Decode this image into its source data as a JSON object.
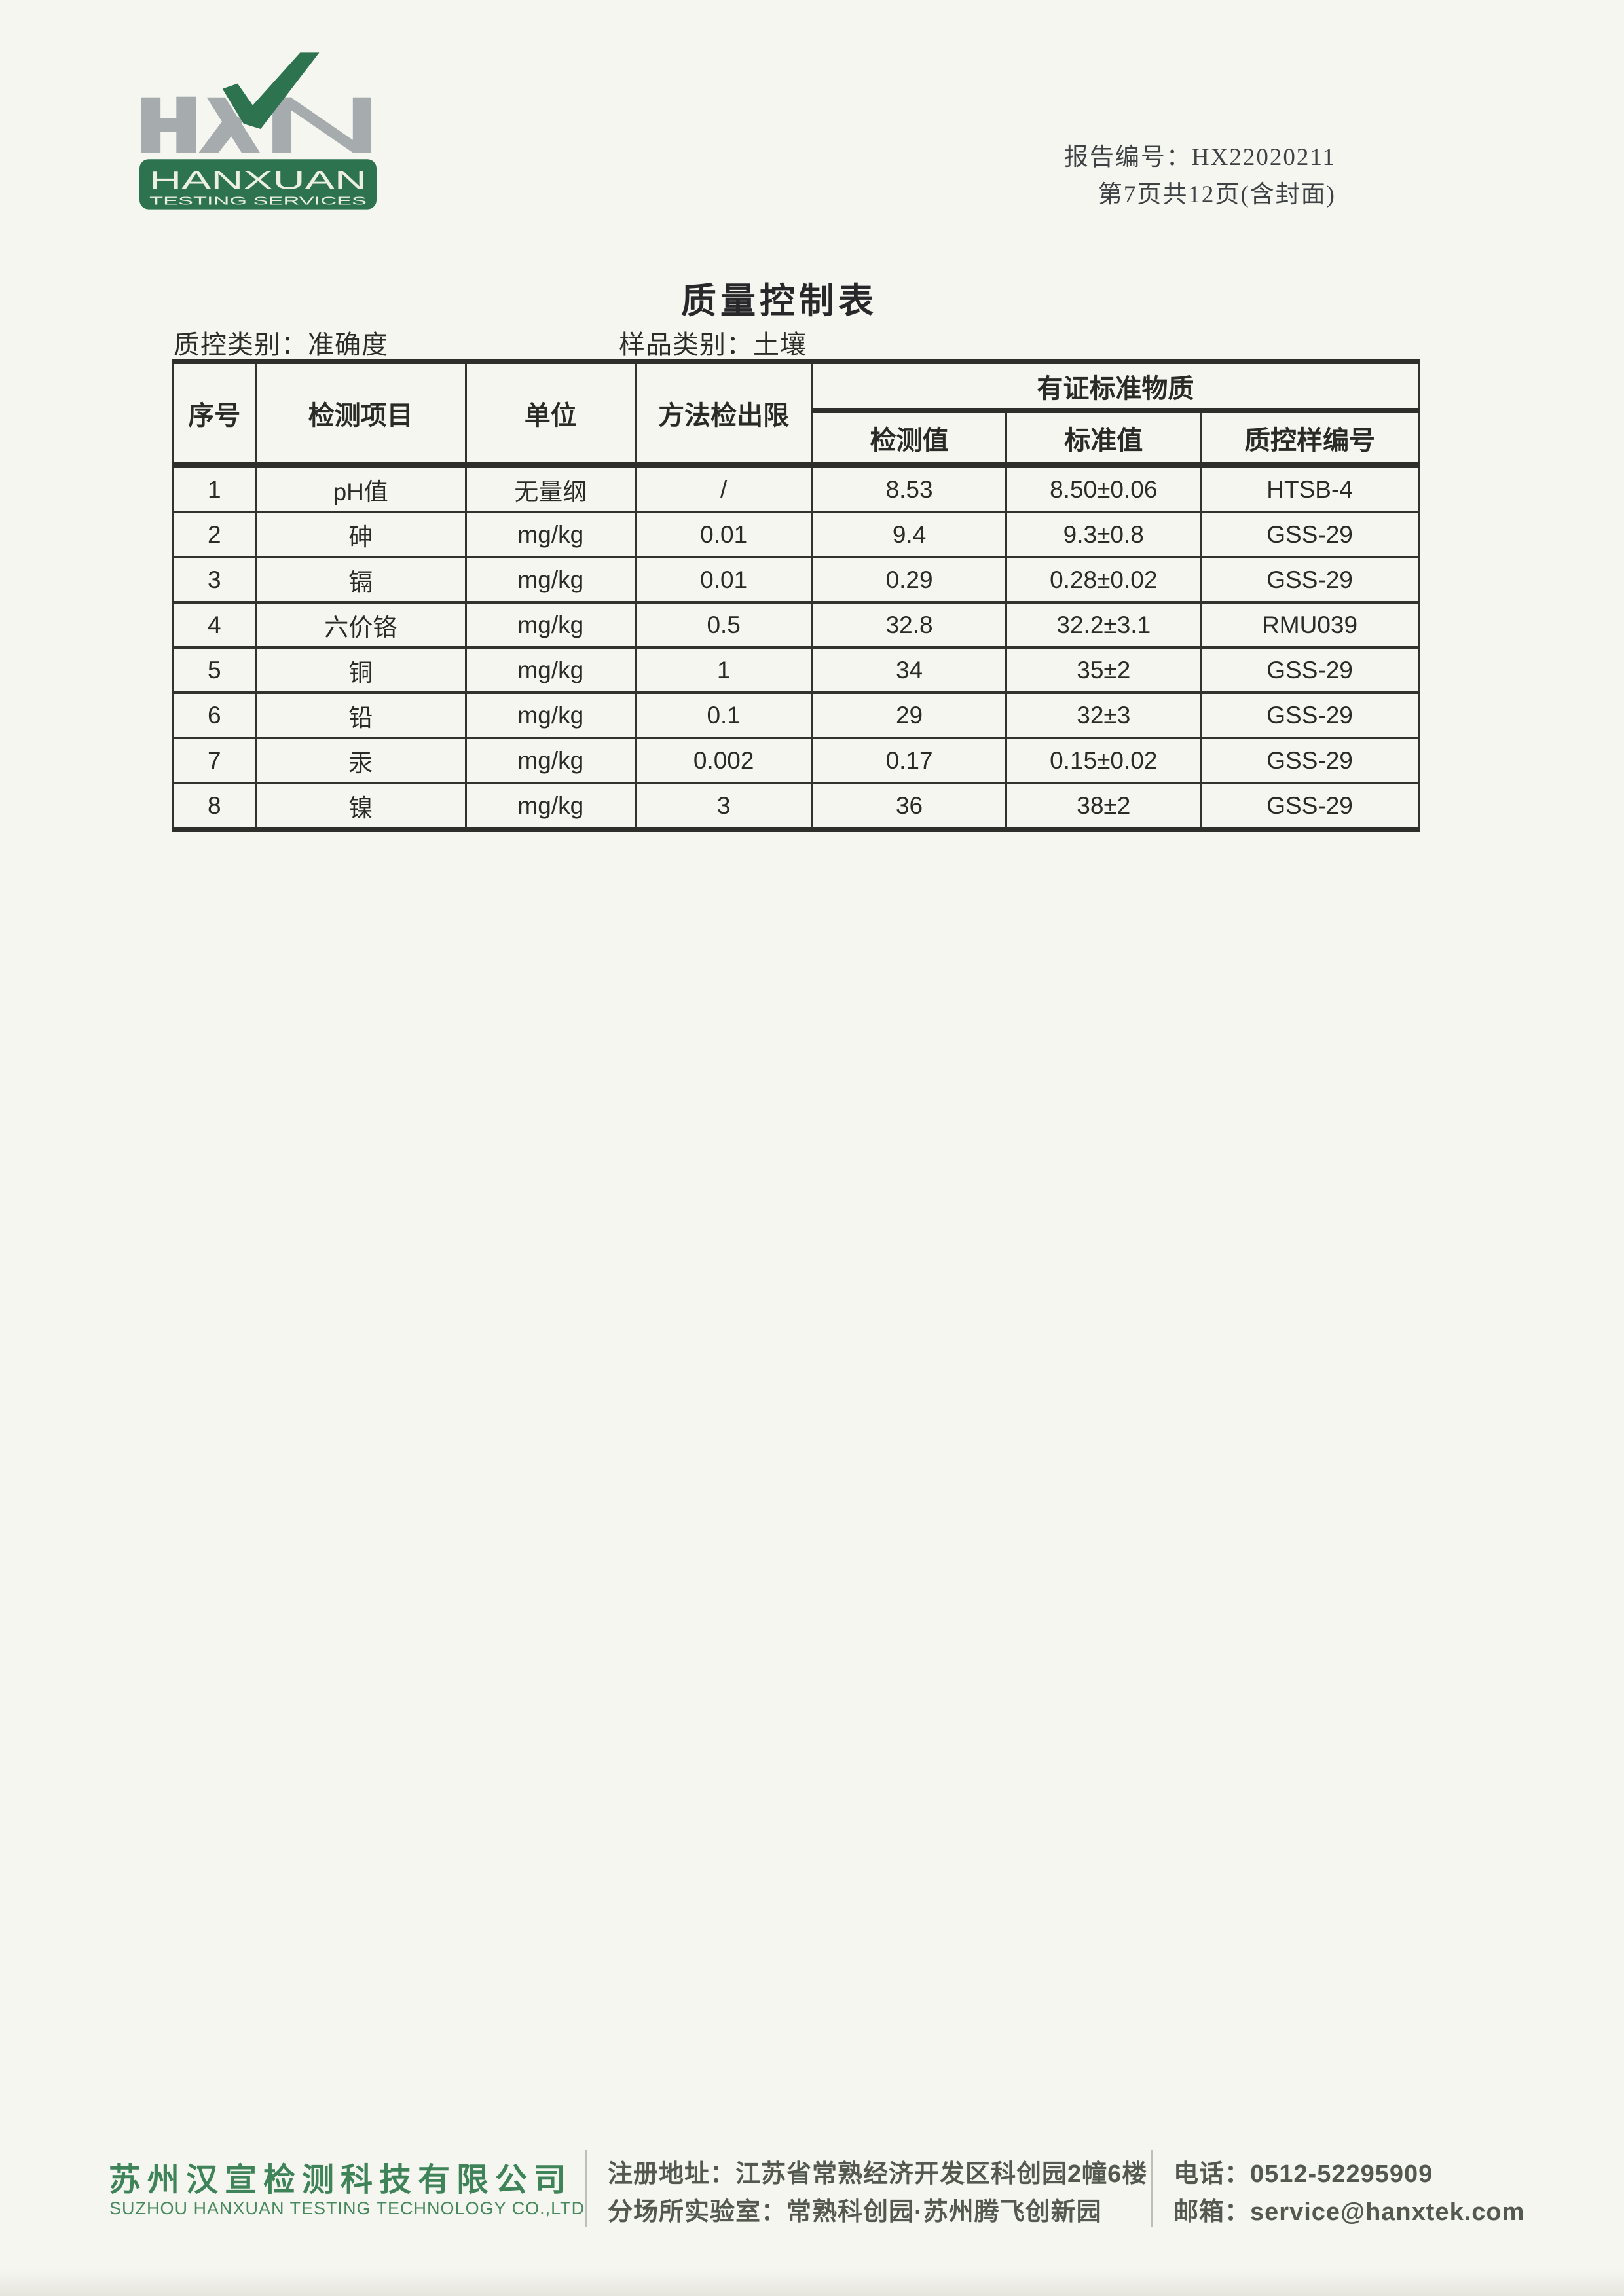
{
  "header": {
    "report_no_label": "报告编号：",
    "report_no": "HX22020211",
    "page_line": "第7页共12页(含封面)"
  },
  "logo": {
    "letters": "HXN",
    "name": "HANXUAN",
    "tagline": "TESTING SERVICES",
    "colors": {
      "gray": "#a6abae",
      "green": "#2d7350",
      "banner_text": "#edefe1"
    }
  },
  "title": "质量控制表",
  "meta": {
    "qc_category": "质控类别：准确度",
    "sample_category": "样品类别：土壤"
  },
  "table": {
    "headers": {
      "seq": "序号",
      "item": "检测项目",
      "unit": "单位",
      "mdl": "方法检出限",
      "crm_group": "有证标准物质",
      "measured": "检测值",
      "standard": "标准值",
      "qc_sample_no": "质控样编号"
    },
    "rows": [
      [
        "1",
        "pH值",
        "无量纲",
        "/",
        "8.53",
        "8.50±0.06",
        "HTSB-4"
      ],
      [
        "2",
        "砷",
        "mg/kg",
        "0.01",
        "9.4",
        "9.3±0.8",
        "GSS-29"
      ],
      [
        "3",
        "镉",
        "mg/kg",
        "0.01",
        "0.29",
        "0.28±0.02",
        "GSS-29"
      ],
      [
        "4",
        "六价铬",
        "mg/kg",
        "0.5",
        "32.8",
        "32.2±3.1",
        "RMU039"
      ],
      [
        "5",
        "铜",
        "mg/kg",
        "1",
        "34",
        "35±2",
        "GSS-29"
      ],
      [
        "6",
        "铅",
        "mg/kg",
        "0.1",
        "29",
        "32±3",
        "GSS-29"
      ],
      [
        "7",
        "汞",
        "mg/kg",
        "0.002",
        "0.17",
        "0.15±0.02",
        "GSS-29"
      ],
      [
        "8",
        "镍",
        "mg/kg",
        "3",
        "36",
        "38±2",
        "GSS-29"
      ]
    ]
  },
  "footer": {
    "company_cn": "苏州汉宣检测科技有限公司",
    "company_en": "SUZHOU HANXUAN TESTING TECHNOLOGY CO.,LTD",
    "address_line1": "注册地址：江苏省常熟经济开发区科创园2幢6楼",
    "address_line2": "分场所实验室：常熟科创园·苏州腾飞创新园",
    "phone_label": "电话：",
    "phone": "0512-52295909",
    "email_label": "邮箱：",
    "email": "service@hanxtek.com"
  }
}
